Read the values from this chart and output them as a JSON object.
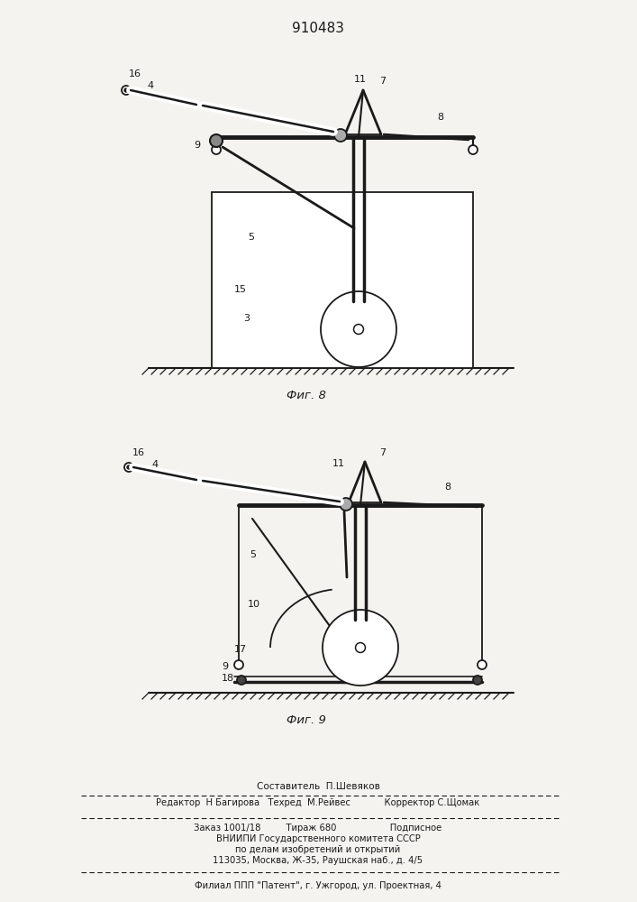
{
  "title": "910483",
  "fig8_label": "Фиг. 8",
  "fig9_label": "Фиг. 9",
  "bg_color": "#f5f3f0",
  "line_color": "#1a1a1a",
  "footer_lines": [
    "Составитель  П.Шевяков",
    "Редактор  Н Багирова   Техред  М.Рейвес            Корректор С.Щомак",
    "Заказ 1001/18         Тираж 680                   Подписное",
    "ВНИИПИ Государственного комитета СССР",
    "по делам изобретений и открытий",
    "113035, Москва, Ж-35, Раушская наб., д. 4/5",
    "Филиал ППП \"Патент\", г. Ужгород, ул. Проектная, 4"
  ]
}
